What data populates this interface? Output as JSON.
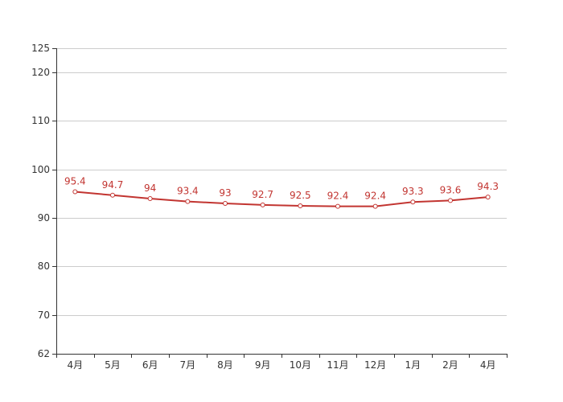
{
  "chart_data": {
    "type": "line",
    "categories": [
      "4月",
      "5月",
      "6月",
      "7月",
      "8月",
      "9月",
      "10月",
      "11月",
      "12月",
      "1月",
      "2月",
      "4月"
    ],
    "series": [
      {
        "values": [
          95.4,
          94.7,
          94,
          93.4,
          93,
          92.7,
          92.5,
          92.4,
          92.4,
          93.3,
          93.6,
          94.3
        ],
        "color": "#c23531"
      }
    ],
    "title": "",
    "xlabel": "",
    "ylabel": "",
    "ylim": [
      62,
      125
    ],
    "yticks": [
      62,
      70,
      80,
      90,
      100,
      110,
      120,
      125
    ],
    "grid": true,
    "data_labels": true
  }
}
